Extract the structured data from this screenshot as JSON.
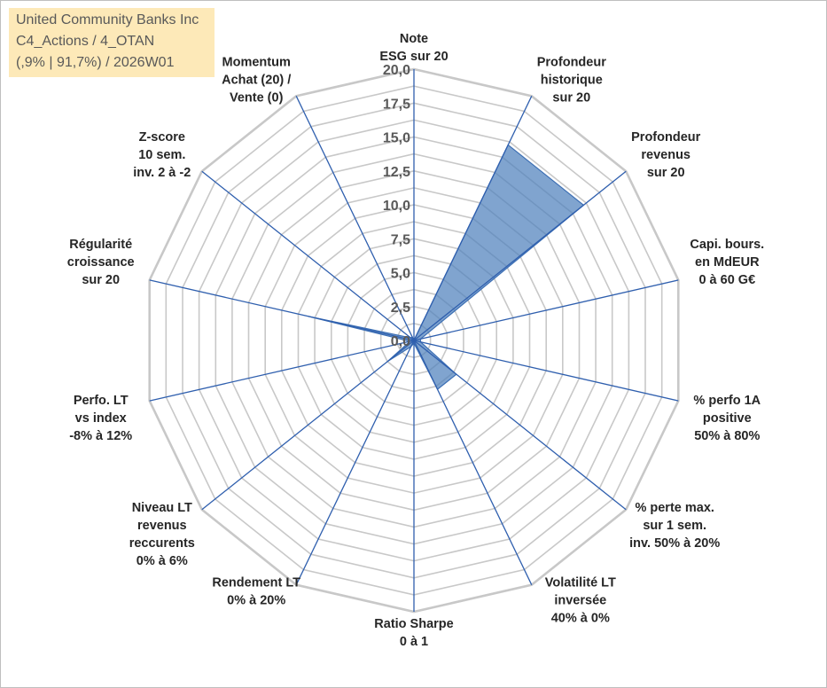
{
  "info": {
    "line1": "United Community Banks Inc",
    "line2": "C4_Actions / 4_OTAN",
    "line3": "(,9% | 91,7%) / 2026W01"
  },
  "chart_data": {
    "type": "radar",
    "r_range": [
      0,
      20
    ],
    "ticks": [
      "0,0",
      "2,5",
      "5,0",
      "7,5",
      "10,0",
      "12,5",
      "15,0",
      "17,5",
      "20,0"
    ],
    "grid": true,
    "axes": [
      {
        "lines": [
          "Note",
          "ESG sur 20"
        ]
      },
      {
        "lines": [
          "Profondeur",
          "historique",
          "sur 20"
        ]
      },
      {
        "lines": [
          "Profondeur",
          "revenus",
          "sur 20"
        ]
      },
      {
        "lines": [
          "Capi. bours.",
          "en MdEUR",
          "0 à 60 G€"
        ]
      },
      {
        "lines": [
          "% perfo 1A",
          "positive",
          "50% à 80%"
        ]
      },
      {
        "lines": [
          "% perte max.",
          "sur 1 sem.",
          "inv. 50% à 20%"
        ]
      },
      {
        "lines": [
          "Volatilité LT",
          "inversée",
          "40% à 0%"
        ]
      },
      {
        "lines": [
          "Ratio Sharpe",
          "0 à 1"
        ]
      },
      {
        "lines": [
          "Rendement LT",
          "0% à 20%"
        ]
      },
      {
        "lines": [
          "Niveau LT",
          "revenus",
          "reccurents",
          "0% à 6%"
        ]
      },
      {
        "lines": [
          "Perfo. LT",
          "vs index",
          "-8% à 12%"
        ]
      },
      {
        "lines": [
          "Régularité",
          "croissance",
          "sur 20"
        ]
      },
      {
        "lines": [
          "Z-score",
          "10 sem.",
          "inv. 2 à -2"
        ]
      },
      {
        "lines": [
          "Momentum",
          "Achat (20) /",
          "Vente (0)"
        ]
      }
    ],
    "series": [
      {
        "values": [
          0,
          16.0,
          16.0,
          0.5,
          0.5,
          4.0,
          4.0,
          0.2,
          0.5,
          2.5,
          0.3,
          8.0,
          0.3,
          0.3
        ]
      }
    ],
    "colors": {
      "fill": "#4f81bd",
      "stroke": "#3c6fb4",
      "spoke": "#2f5fae",
      "grid": "#c8c8c8"
    }
  }
}
